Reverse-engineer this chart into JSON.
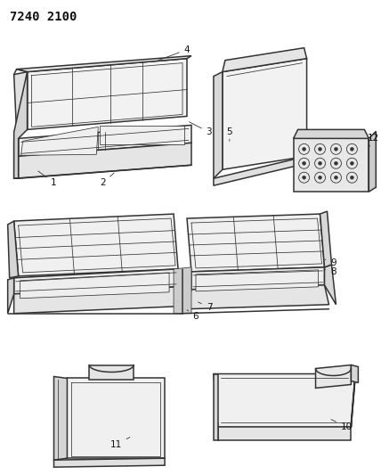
{
  "title": "7240 2100",
  "bg_color": "#ffffff",
  "line_color": "#333333",
  "label_color": "#111111",
  "label_fontsize": 7.5,
  "title_fontsize": 10,
  "lw_main": 1.1,
  "lw_thin": 0.55,
  "lw_seam": 0.45
}
